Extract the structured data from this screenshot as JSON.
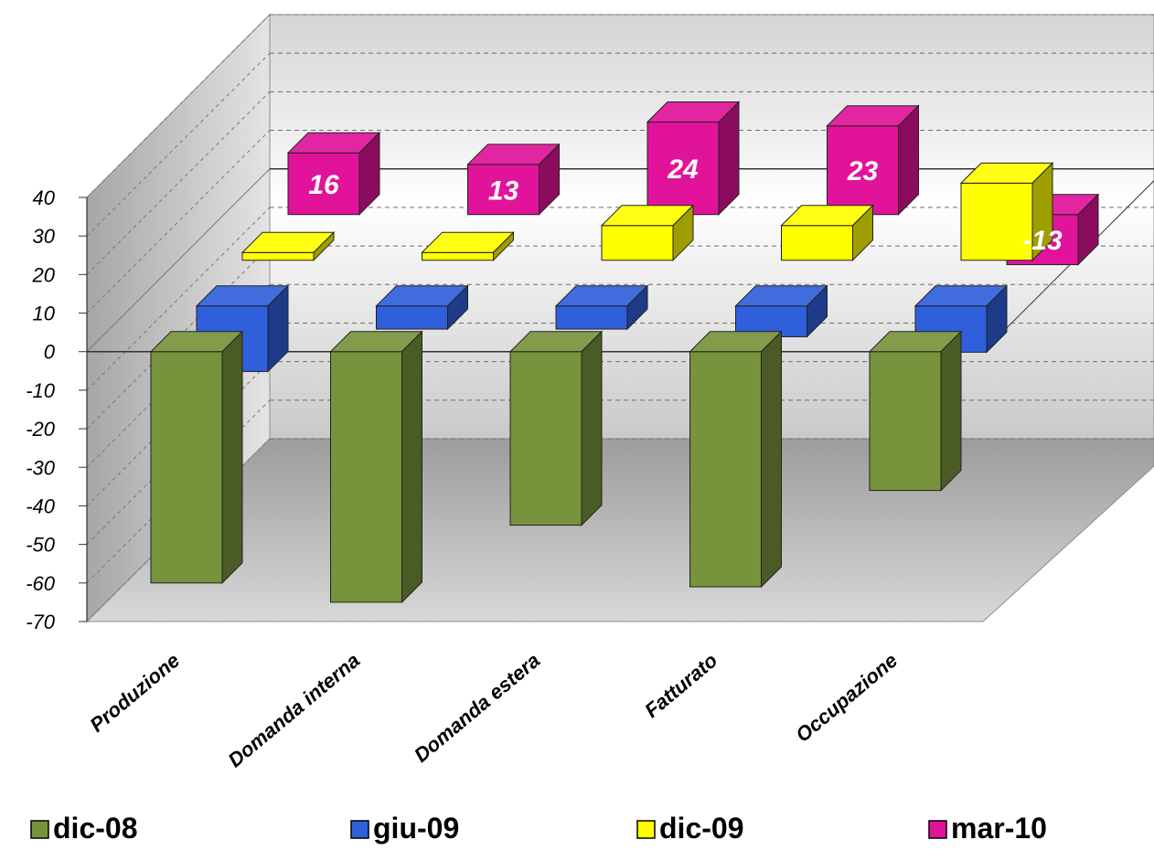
{
  "chart_data": {
    "type": "bar",
    "title": "",
    "xlabel": "",
    "ylabel": "",
    "ylim": [
      -70,
      40
    ],
    "yticks": [
      40,
      30,
      20,
      10,
      0,
      -10,
      -20,
      -30,
      -40,
      -50,
      -60,
      -70
    ],
    "grid": true,
    "legend_position": "bottom",
    "categories": [
      "Produzione",
      "Domanda interna",
      "Domanda estera",
      "Fatturato",
      "Occupazione"
    ],
    "series": [
      {
        "name": "dic-08",
        "color": "#77933C",
        "values": [
          -60,
          -65,
          -45,
          -61,
          -36
        ]
      },
      {
        "name": "giu-09",
        "color": "#2F5FDB",
        "values": [
          -17,
          -6,
          -6,
          -8,
          -12
        ]
      },
      {
        "name": "dic-09",
        "color": "#FFFF00",
        "values": [
          2,
          2,
          9,
          9,
          20
        ]
      },
      {
        "name": "mar-10",
        "color": "#E0139A",
        "values": [
          16,
          13,
          24,
          23,
          -13
        ],
        "data_labels": [
          "16",
          "13",
          "24",
          "23",
          "-13"
        ]
      }
    ]
  }
}
